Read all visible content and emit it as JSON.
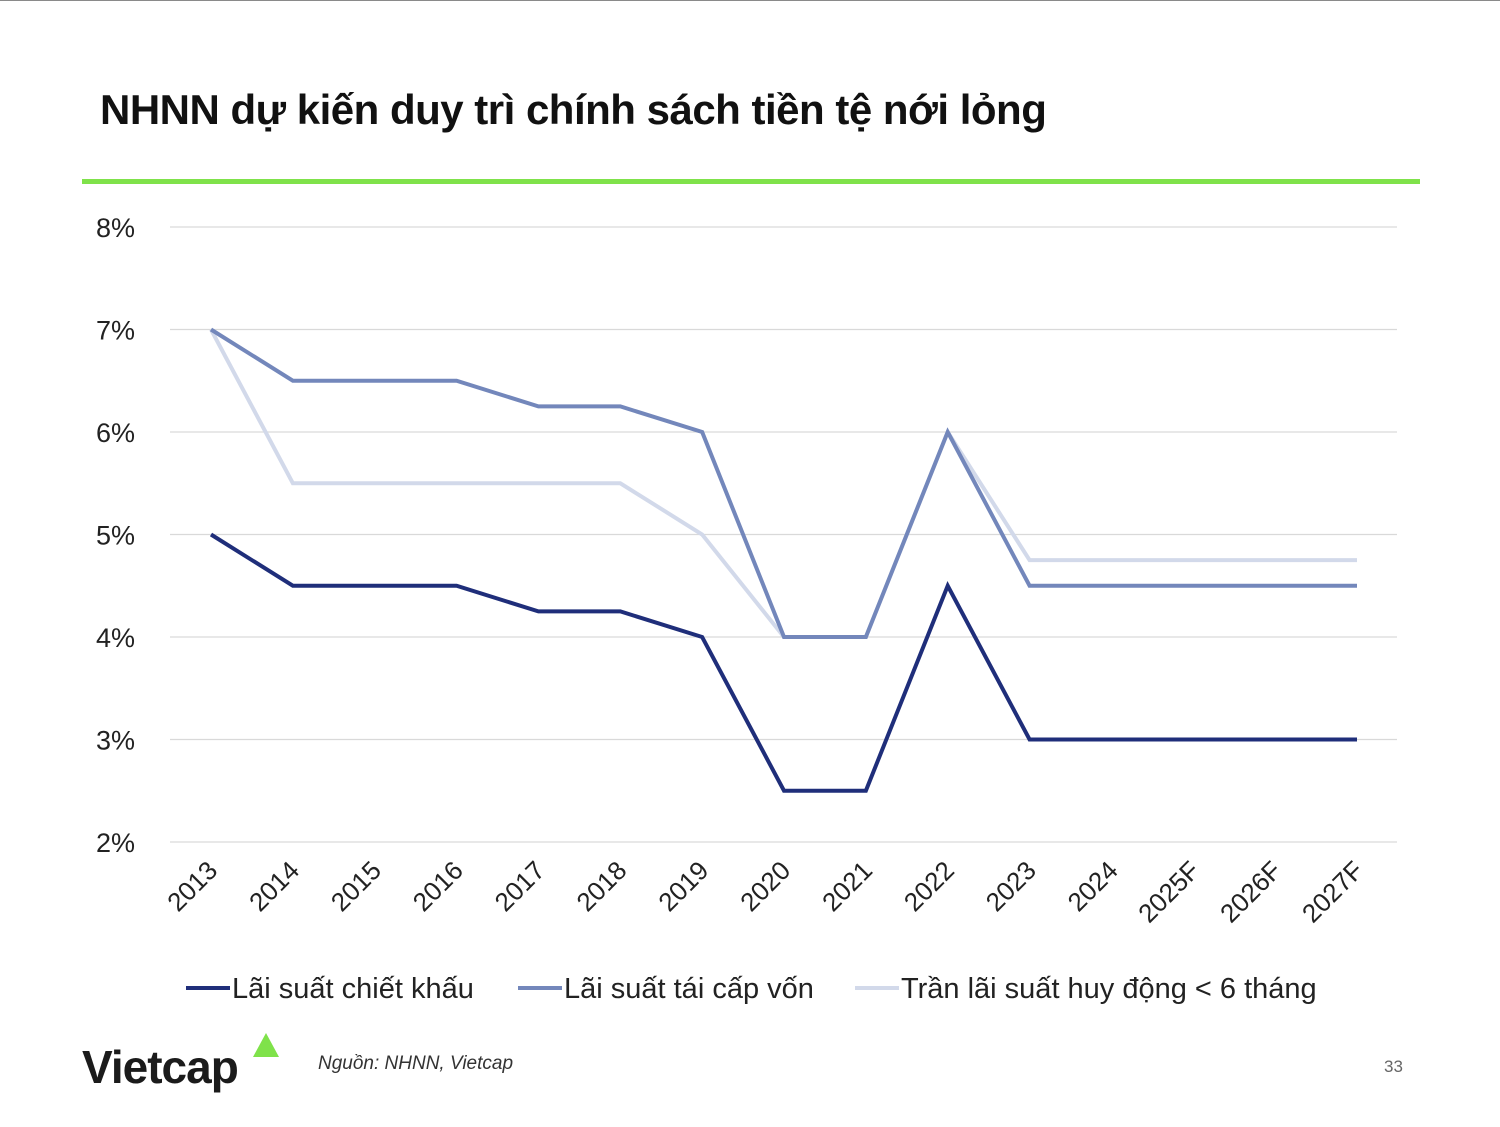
{
  "title": "NHNN dự kiến duy trì chính sách tiền tệ nới lỏng",
  "colors": {
    "accent": "#7fe24a",
    "series_1": "#1f2e7a",
    "series_2": "#7387bb",
    "series_3": "#d2d9ea",
    "grid": "#d9d9d9"
  },
  "chart_data": {
    "type": "line",
    "x": [
      "2013",
      "2014",
      "2015",
      "2016",
      "2017",
      "2018",
      "2019",
      "2020",
      "2021",
      "2022",
      "2023",
      "2024",
      "2025F",
      "2026F",
      "2027F"
    ],
    "series": [
      {
        "name": "Lãi suất chiết khấu",
        "values": [
          5.0,
          4.5,
          4.5,
          4.5,
          4.25,
          4.25,
          4.0,
          2.5,
          2.5,
          4.5,
          3.0,
          3.0,
          3.0,
          3.0,
          3.0
        ]
      },
      {
        "name": "Lãi suất tái cấp vốn",
        "values": [
          7.0,
          6.5,
          6.5,
          6.5,
          6.25,
          6.25,
          6.0,
          4.0,
          4.0,
          6.0,
          4.5,
          4.5,
          4.5,
          4.5,
          4.5
        ]
      },
      {
        "name": "Trần lãi suất huy động < 6 tháng",
        "values": [
          7.0,
          5.5,
          5.5,
          5.5,
          5.5,
          5.5,
          5.0,
          4.0,
          4.0,
          6.0,
          4.75,
          4.75,
          4.75,
          4.75,
          4.75
        ]
      }
    ],
    "ylim": [
      2,
      8
    ],
    "yticks": [
      "2%",
      "3%",
      "4%",
      "5%",
      "6%",
      "7%",
      "8%"
    ],
    "grid": true,
    "legend": "bottom"
  },
  "footer": {
    "logo": "Vietcap",
    "source": "Nguồn: NHNN, Vietcap",
    "page": "33"
  }
}
